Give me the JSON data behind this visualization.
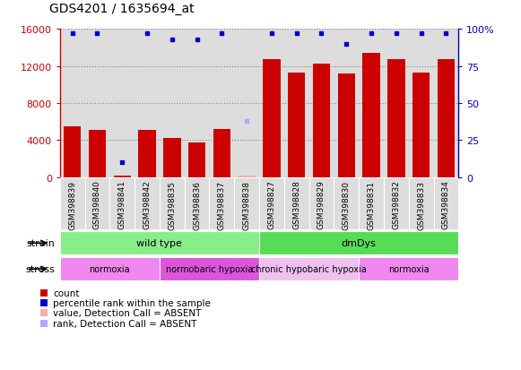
{
  "title": "GDS4201 / 1635694_at",
  "samples": [
    "GSM398839",
    "GSM398840",
    "GSM398841",
    "GSM398842",
    "GSM398835",
    "GSM398836",
    "GSM398837",
    "GSM398838",
    "GSM398827",
    "GSM398828",
    "GSM398829",
    "GSM398830",
    "GSM398831",
    "GSM398832",
    "GSM398833",
    "GSM398834"
  ],
  "counts": [
    5500,
    5100,
    200,
    5100,
    4200,
    3700,
    5200,
    150,
    12700,
    11300,
    12200,
    11200,
    13400,
    12700,
    11300,
    12700
  ],
  "count_absent": [
    false,
    false,
    false,
    false,
    false,
    false,
    false,
    true,
    false,
    false,
    false,
    false,
    false,
    false,
    false,
    false
  ],
  "percentile_ranks": [
    97,
    97,
    10,
    97,
    93,
    93,
    97,
    38,
    97,
    97,
    97,
    90,
    97,
    97,
    97,
    97
  ],
  "rank_absent_indices": [
    7
  ],
  "ylim_left": [
    0,
    16000
  ],
  "ylim_right": [
    0,
    100
  ],
  "yticks_left": [
    0,
    4000,
    8000,
    12000,
    16000
  ],
  "yticks_right": [
    0,
    25,
    50,
    75,
    100
  ],
  "ytick_labels_right": [
    "0",
    "25",
    "50",
    "75",
    "100%"
  ],
  "bar_color": "#cc0000",
  "bar_color_absent": "#ffaaaa",
  "rank_color": "#0000cc",
  "rank_color_absent": "#aaaaff",
  "strain_groups": [
    {
      "label": "wild type",
      "start": 0,
      "end": 8,
      "color": "#88ee88"
    },
    {
      "label": "dmDys",
      "start": 8,
      "end": 16,
      "color": "#55dd55"
    }
  ],
  "stress_groups": [
    {
      "label": "normoxia",
      "start": 0,
      "end": 4,
      "color": "#ee88ee"
    },
    {
      "label": "normobaric hypoxia",
      "start": 4,
      "end": 8,
      "color": "#dd55dd"
    },
    {
      "label": "chronic hypobaric hypoxia",
      "start": 8,
      "end": 12,
      "color": "#f0c0f0"
    },
    {
      "label": "normoxia",
      "start": 12,
      "end": 16,
      "color": "#ee88ee"
    }
  ],
  "legend_items": [
    {
      "label": "count",
      "color": "#cc0000"
    },
    {
      "label": "percentile rank within the sample",
      "color": "#0000cc"
    },
    {
      "label": "value, Detection Call = ABSENT",
      "color": "#ffaaaa"
    },
    {
      "label": "rank, Detection Call = ABSENT",
      "color": "#aaaaff"
    }
  ],
  "left_axis_color": "#cc0000",
  "right_axis_color": "#0000cc",
  "grid_color": "#888888",
  "cell_bg_color": "#dddddd",
  "plot_bg": "#ffffff"
}
